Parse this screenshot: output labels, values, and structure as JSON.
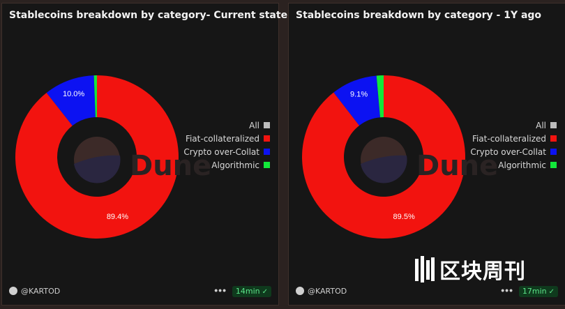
{
  "panels": [
    {
      "title": "Stablecoins breakdown by category- Current state",
      "author": "@KARTOD",
      "more": "•••",
      "time": "14min"
    },
    {
      "title": "Stablecoins breakdown by category - 1Y ago",
      "author": "@KARTOD",
      "more": "•••",
      "time": "17min"
    }
  ],
  "legend": [
    {
      "label": "All",
      "color": "#bdbdbd"
    },
    {
      "label": "Fiat-collateralized",
      "color": "#f2130f"
    },
    {
      "label": "Crypto over-Collat",
      "color": "#0c12f2"
    },
    {
      "label": "Algorithmic",
      "color": "#12e83a"
    }
  ],
  "watermark": "Dune",
  "brand": "区块周刊",
  "chart_data": [
    {
      "type": "pie",
      "title": "Stablecoins breakdown by category- Current state",
      "categories": [
        "Fiat-collateralized",
        "Crypto over-Collat",
        "Algorithmic"
      ],
      "values": [
        89.4,
        10.0,
        0.6
      ],
      "value_labels": [
        "89.4%",
        "10.0%",
        ""
      ],
      "colors": [
        "#f2130f",
        "#0c12f2",
        "#12e83a"
      ],
      "donut": true,
      "legend_position": "right"
    },
    {
      "type": "pie",
      "title": "Stablecoins breakdown by category - 1Y ago",
      "categories": [
        "Fiat-collateralized",
        "Crypto over-Collat",
        "Algorithmic"
      ],
      "values": [
        89.5,
        9.1,
        1.4
      ],
      "value_labels": [
        "89.5%",
        "9.1%",
        ""
      ],
      "colors": [
        "#f2130f",
        "#0c12f2",
        "#12e83a"
      ],
      "donut": true,
      "legend_position": "right"
    }
  ]
}
